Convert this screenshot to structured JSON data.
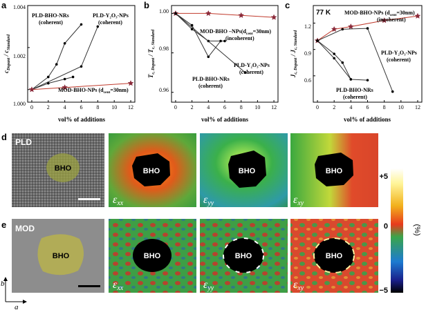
{
  "panel_letters": [
    "a",
    "b",
    "c",
    "d",
    "e"
  ],
  "charts": {
    "a": {
      "x_ticks": [
        "0",
        "2",
        "4",
        "6",
        "8",
        "10",
        "12"
      ],
      "y_ticks": [
        "1.000",
        "1.002",
        "1.004"
      ],
      "xlabel": "vol% of additions",
      "ylabel": "c Dopant / c Standard",
      "annotations": {
        "bho_nrs": "PLD-BHO-NRs",
        "bho_nrs_coh": "(coherent)",
        "y2o3": "PLD-Y₂O₃-NPs",
        "y2o3_coh": "(coherent)",
        "mod": "MOD-BHO-NPs (d",
        "mod_sub": "cent",
        "mod_tail": "=30nm)"
      }
    },
    "b": {
      "x_ticks": [
        "0",
        "2",
        "4",
        "6",
        "8",
        "10",
        "12"
      ],
      "y_ticks": [
        "0.96",
        "0.98",
        "1.00"
      ],
      "xlabel": "vol% of additions",
      "ylabel": "T c, Dopant / T c, Standard",
      "annotations": {
        "mod": "MOD-BHO –NPs(d",
        "mod_sub": "cent",
        "mod_tail": "=30nm)",
        "mod_inc": "(incoherent)",
        "y2o3": "PLD-Y₂O₃-NPs",
        "y2o3_coh": "(coherent)",
        "bho_nrs": "PLD-BHO-NRs",
        "bho_nrs_coh": "(coherent)"
      }
    },
    "c": {
      "x_ticks": [
        "0",
        "2",
        "4",
        "6",
        "8",
        "10",
        "12"
      ],
      "y_ticks": [
        "0.6",
        "0.9",
        "1.2"
      ],
      "xlabel": "vol% of additions",
      "ylabel": "J c, Dopant / J c, Standard",
      "temp": "77 K",
      "annotations": {
        "mod": "MOD-BHO-NPs (d",
        "mod_sub": "cent",
        "mod_tail": "=30nm)",
        "mod_inc": "(incoherent)",
        "y2o3": "PLD-Y₂O₃-NPs",
        "y2o3_coh": "(coherent)",
        "bho_nrs": "PLD-BHO-NRs",
        "bho_nrs_coh": "(coherent)"
      }
    }
  },
  "chart_data": [
    {
      "type": "line",
      "panel": "a",
      "xlim": [
        -0.5,
        12.5
      ],
      "ylim": [
        0.9994,
        1.004
      ],
      "xlabel": "vol% of additions",
      "ylabel": "c Dopant / c Standard",
      "series": [
        {
          "name": "PLD-BHO-NRs (upper)",
          "color": "#333333",
          "marker": "circle",
          "x": [
            0,
            2,
            3,
            4,
            6
          ],
          "y": [
            1.0,
            1.0006,
            1.0012,
            1.0022,
            1.0031
          ]
        },
        {
          "name": "PLD-BHO-NRs (lower)",
          "color": "#333333",
          "marker": "circle",
          "x": [
            0,
            2,
            4,
            5
          ],
          "y": [
            1.0,
            1.0003,
            1.0005,
            1.0006
          ]
        },
        {
          "name": "PLD-Y₂O₃-NPs",
          "color": "#333333",
          "marker": "circle",
          "x": [
            0,
            6,
            8
          ],
          "y": [
            1.0,
            1.0011,
            1.003
          ]
        },
        {
          "name": "MOD-BHO-NPs (d_cent=30nm)",
          "color": "#c0392b",
          "marker": "star",
          "x": [
            0,
            4,
            12
          ],
          "y": [
            1.0,
            1.0001,
            1.0003
          ]
        }
      ]
    },
    {
      "type": "line",
      "panel": "b",
      "xlim": [
        -0.5,
        12.5
      ],
      "ylim": [
        0.955,
        1.004
      ],
      "xlabel": "vol% of additions",
      "ylabel": "T c, Dopant / T c, Standard",
      "series": [
        {
          "name": "MOD-BHO-NPs (d_cent=30nm)",
          "color": "#c0392b",
          "marker": "star",
          "x": [
            0,
            4,
            8,
            12
          ],
          "y": [
            1.0,
            1.0,
            0.999,
            0.998
          ]
        },
        {
          "name": "PLD-BHO-NRs (upper)",
          "color": "#333333",
          "marker": "circle",
          "x": [
            0,
            2,
            4,
            6
          ],
          "y": [
            1.0,
            0.992,
            0.986,
            0.986
          ]
        },
        {
          "name": "PLD-BHO-NRs (lower)",
          "color": "#333333",
          "marker": "circle",
          "x": [
            0,
            2,
            4,
            5.5
          ],
          "y": [
            1.0,
            0.994,
            0.978,
            0.986
          ]
        },
        {
          "name": "PLD-Y₂O₃-NPs",
          "color": "#333333",
          "marker": "circle",
          "x": [
            0,
            8.5
          ],
          "y": [
            1.0,
            0.97
          ]
        }
      ]
    },
    {
      "type": "line",
      "panel": "c",
      "xlim": [
        -0.5,
        12.5
      ],
      "ylim": [
        0.3,
        1.4
      ],
      "xlabel": "vol% of additions",
      "ylabel": "J c, Dopant / J c, Standard",
      "series": [
        {
          "name": "MOD-BHO-NPs (d_cent=30nm)",
          "color": "#c0392b",
          "marker": "star",
          "x": [
            0,
            2,
            4,
            8,
            12
          ],
          "y": [
            1.0,
            1.13,
            1.16,
            1.23,
            1.28
          ]
        },
        {
          "name": "PLD-Y₂O₃-NPs",
          "color": "#333333",
          "marker": "circle",
          "x": [
            0,
            3,
            6,
            9
          ],
          "y": [
            1.0,
            1.13,
            1.14,
            0.42
          ]
        },
        {
          "name": "PLD-BHO-NRs (upper)",
          "color": "#333333",
          "marker": "circle",
          "x": [
            0,
            2,
            3,
            4,
            6
          ],
          "y": [
            1.0,
            0.85,
            0.75,
            0.56,
            0.55
          ]
        },
        {
          "name": "PLD-BHO-NRs (lower)",
          "color": "#333333",
          "marker": "circle",
          "x": [
            0,
            2,
            4
          ],
          "y": [
            1.0,
            0.8,
            0.56
          ]
        }
      ]
    }
  ],
  "maps": {
    "d_tag": "PLD",
    "e_tag": "MOD",
    "particle_label": "BHO",
    "strain_labels": [
      "ε",
      "ε",
      "ε"
    ],
    "strain_subs": [
      "xx",
      "yy",
      "xy"
    ]
  },
  "colorbar": {
    "ticks": [
      "+5",
      "0",
      "−5"
    ],
    "unit": "(%)"
  },
  "axes_indicator": {
    "b": "b",
    "a": "a"
  }
}
